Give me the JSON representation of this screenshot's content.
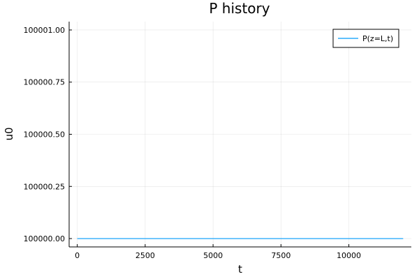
{
  "chart_data": {
    "type": "line",
    "title": "P history",
    "xlabel": "t",
    "ylabel": "u0",
    "xlim": [
      -300,
      12300
    ],
    "ylim": [
      99999.96,
      100001.04
    ],
    "x_ticks": [
      0,
      2500,
      5000,
      7500,
      10000
    ],
    "x_tick_labels": [
      "0",
      "2500",
      "5000",
      "7500",
      "10000"
    ],
    "y_ticks": [
      100000.0,
      100000.25,
      100000.5,
      100000.75,
      100001.0
    ],
    "y_tick_labels": [
      "100000.00",
      "100000.25",
      "100000.50",
      "100000.75",
      "100001.00"
    ],
    "grid": true,
    "legend_position": "top-right",
    "series": [
      {
        "name": "P(z=L,t)",
        "color": "#009af9",
        "x": [
          0,
          12000
        ],
        "y": [
          100000.0,
          100000.0
        ]
      }
    ]
  }
}
